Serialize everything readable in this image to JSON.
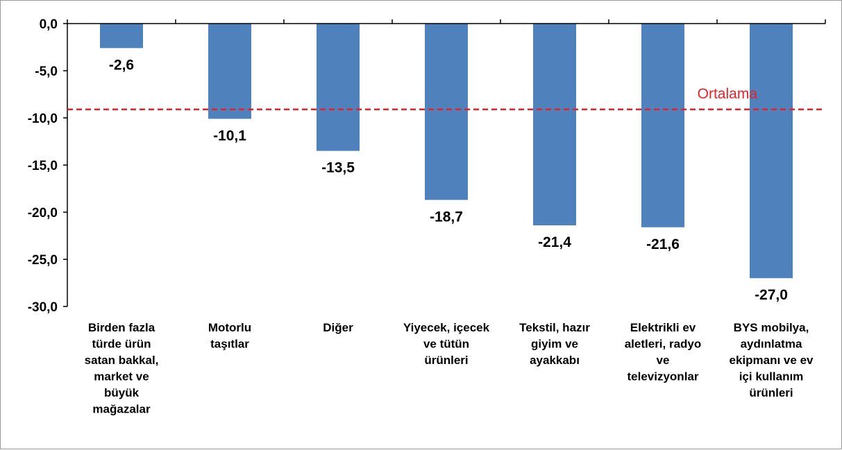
{
  "chart_data": {
    "type": "bar",
    "title": "",
    "xlabel": "",
    "ylabel": "",
    "ylim": [
      -30,
      0
    ],
    "yticks": [
      "0,0",
      "-5,0",
      "-10,0",
      "-15,0",
      "-20,0",
      "-25,0",
      "-30,0"
    ],
    "ytick_values": [
      0,
      -5,
      -10,
      -15,
      -20,
      -25,
      -30
    ],
    "categories": [
      [
        "Birden fazla",
        "türde ürün",
        "satan bakkal,",
        "market ve",
        "büyük",
        "mağazalar"
      ],
      [
        "Motorlu",
        "taşıtlar"
      ],
      [
        "Diğer"
      ],
      [
        "Yiyecek, içecek",
        "ve tütün",
        "ürünleri"
      ],
      [
        "Tekstil, hazır",
        "giyim ve",
        "ayakkabı"
      ],
      [
        "Elektrikli ev",
        "aletleri, radyo",
        "ve",
        "televizyonlar"
      ],
      [
        "BYS mobilya,",
        "aydınlatma",
        "ekipmanı ve ev",
        "içi kullanım",
        "ürünleri"
      ]
    ],
    "values": [
      -2.6,
      -10.1,
      -13.5,
      -18.7,
      -21.4,
      -21.6,
      -27.0
    ],
    "value_labels": [
      "-2,6",
      "-10,1",
      "-13,5",
      "-18,7",
      "-21,4",
      "-21,6",
      "-27,0"
    ],
    "reference_line": {
      "label": "Ortalama",
      "value": -9.1,
      "color": "#e8202a",
      "style": "dashed"
    },
    "bar_color": "#4f81bd",
    "grid": false,
    "legend": "none"
  }
}
